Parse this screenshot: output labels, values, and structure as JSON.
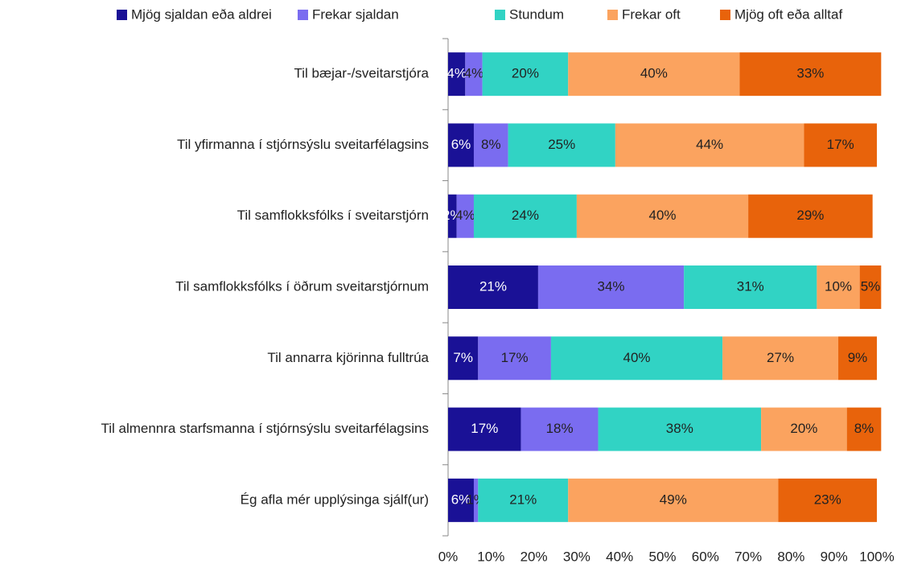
{
  "chart_data": {
    "type": "stacked-barh",
    "categories": [
      "Til bæjar-/sveitarstjóra",
      "Til yfirmanna í stjórnsýslu sveitarfélagsins",
      "Til samflokksfólks í sveitarstjórn",
      "Til samflokksfólks í öðrum sveitarstjórnum",
      "Til annarra kjörinna fulltrúa",
      "Til almennra starfsmanna í stjórnsýslu sveitarfélagsins",
      "Ég afla mér upplýsinga sjálf(ur)"
    ],
    "series": [
      {
        "name": "Mjög sjaldan eða aldrei",
        "color": "#1a1196",
        "values": [
          4,
          6,
          2,
          21,
          7,
          17,
          6
        ],
        "value_labels": [
          "4%",
          "6%",
          "2%",
          "21%",
          "7%",
          "17%",
          "6%"
        ]
      },
      {
        "name": "Frekar sjaldan",
        "color": "#7a6cf0",
        "values": [
          4,
          8,
          4,
          34,
          17,
          18,
          1
        ],
        "value_labels": [
          "4%",
          "8%",
          "4%",
          "34%",
          "17%",
          "18%",
          "1%"
        ]
      },
      {
        "name": "Stundum",
        "color": "#31d3c4",
        "values": [
          20,
          25,
          24,
          31,
          40,
          38,
          21
        ],
        "value_labels": [
          "20%",
          "25%",
          "24%",
          "31%",
          "40%",
          "38%",
          "21%"
        ]
      },
      {
        "name": "Frekar oft",
        "color": "#fba35f",
        "values": [
          40,
          44,
          40,
          10,
          27,
          20,
          49
        ],
        "value_labels": [
          "40%",
          "44%",
          "40%",
          "10%",
          "27%",
          "20%",
          "49%"
        ]
      },
      {
        "name": "Mjög oft eða alltaf",
        "color": "#e8630b",
        "values": [
          33,
          17,
          29,
          5,
          9,
          8,
          23
        ],
        "value_labels": [
          "33%",
          "17%",
          "29%",
          "5%",
          "9%",
          "8%",
          "23%"
        ]
      }
    ],
    "xlim": [
      0,
      100
    ],
    "xticks": [
      {
        "value": 0,
        "label": "0%"
      },
      {
        "value": 10,
        "label": "10%"
      },
      {
        "value": 20,
        "label": "20%"
      },
      {
        "value": 30,
        "label": "30%"
      },
      {
        "value": 40,
        "label": "40%"
      },
      {
        "value": 50,
        "label": "50%"
      },
      {
        "value": 60,
        "label": "60%"
      },
      {
        "value": 70,
        "label": "70%"
      },
      {
        "value": 80,
        "label": "80%"
      },
      {
        "value": 90,
        "label": "90%"
      },
      {
        "value": 100,
        "label": "100%"
      }
    ],
    "legend": "top"
  }
}
